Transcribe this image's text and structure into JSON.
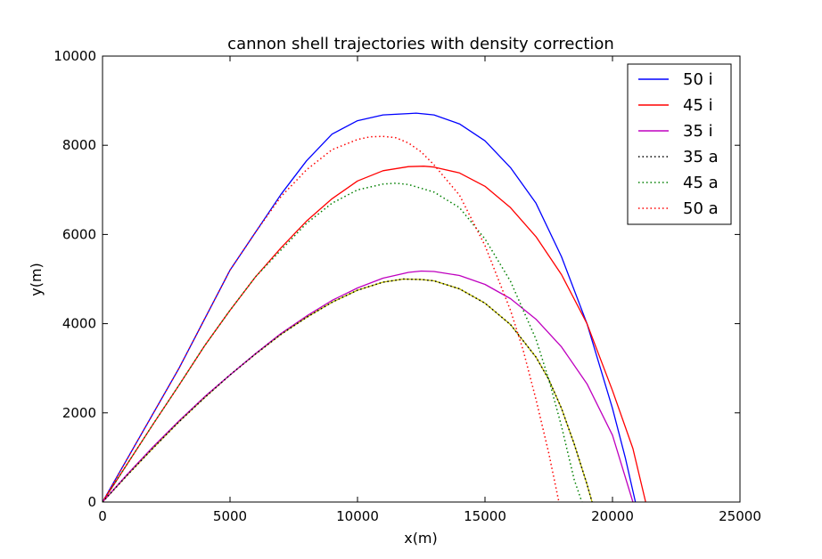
{
  "chart_data": {
    "type": "line",
    "title": "cannon shell trajectories with density correction",
    "xlabel": "x(m)",
    "ylabel": "y(m)",
    "xlim": [
      0,
      25000
    ],
    "ylim": [
      0,
      10000
    ],
    "xticks": [
      0,
      5000,
      10000,
      15000,
      20000,
      25000
    ],
    "yticks": [
      0,
      2000,
      4000,
      6000,
      8000,
      10000
    ],
    "grid": false,
    "legend_position": "top-right",
    "series": [
      {
        "name": "50 i",
        "color": "#0000ff",
        "dash": "solid",
        "x": [
          0,
          1000,
          2000,
          3000,
          4000,
          5000,
          6000,
          7000,
          8000,
          9000,
          10000,
          11000,
          12000,
          12300,
          13000,
          14000,
          15000,
          16000,
          17000,
          18000,
          19000,
          20000,
          20500,
          20900
        ],
        "y": [
          0,
          1000,
          2000,
          3000,
          4100,
          5200,
          6050,
          6900,
          7650,
          8250,
          8550,
          8680,
          8710,
          8720,
          8680,
          8480,
          8100,
          7500,
          6700,
          5500,
          4000,
          2100,
          1000,
          0
        ]
      },
      {
        "name": "45 i",
        "color": "#ff0000",
        "dash": "solid",
        "x": [
          0,
          1000,
          2000,
          3000,
          4000,
          5000,
          6000,
          7000,
          8000,
          9000,
          10000,
          11000,
          12000,
          12600,
          13000,
          14000,
          15000,
          16000,
          17000,
          18000,
          19000,
          20000,
          20800,
          21300
        ],
        "y": [
          0,
          880,
          1760,
          2620,
          3500,
          4300,
          5050,
          5700,
          6300,
          6800,
          7200,
          7430,
          7520,
          7530,
          7510,
          7380,
          7080,
          6600,
          5950,
          5100,
          4000,
          2500,
          1200,
          0
        ]
      },
      {
        "name": "35 i",
        "color": "#bf00bf",
        "dash": "solid",
        "x": [
          0,
          1000,
          2000,
          3000,
          4000,
          5000,
          6000,
          7000,
          8000,
          9000,
          10000,
          11000,
          12000,
          12500,
          13000,
          14000,
          15000,
          16000,
          17000,
          18000,
          19000,
          20000,
          20800
        ],
        "y": [
          0,
          640,
          1250,
          1820,
          2360,
          2850,
          3330,
          3780,
          4170,
          4520,
          4800,
          5020,
          5150,
          5180,
          5170,
          5080,
          4880,
          4560,
          4100,
          3480,
          2650,
          1500,
          0
        ]
      },
      {
        "name": "35 a",
        "color": "#000000",
        "dash": "dotted",
        "x": [
          0,
          1000,
          2000,
          3000,
          4000,
          5000,
          6000,
          7000,
          8000,
          9000,
          10000,
          11000,
          11800,
          12500,
          13000,
          14000,
          15000,
          16000,
          17000,
          17500,
          18000,
          18500,
          19000,
          19200
        ],
        "y": [
          0,
          620,
          1220,
          1800,
          2340,
          2850,
          3320,
          3760,
          4140,
          4480,
          4750,
          4930,
          5000,
          4990,
          4960,
          4780,
          4460,
          3980,
          3250,
          2750,
          2100,
          1300,
          400,
          0
        ]
      },
      {
        "name": "45 a",
        "color": "#007f00",
        "dash": "dotted",
        "x": [
          0,
          1000,
          2000,
          3000,
          4000,
          5000,
          6000,
          7000,
          8000,
          9000,
          10000,
          11000,
          11500,
          12000,
          13000,
          14000,
          15000,
          16000,
          17000,
          17500,
          18000,
          18500,
          18800
        ],
        "y": [
          0,
          880,
          1760,
          2620,
          3500,
          4300,
          5050,
          5650,
          6250,
          6700,
          7000,
          7130,
          7150,
          7120,
          6950,
          6600,
          5900,
          4950,
          3650,
          2750,
          1700,
          500,
          0
        ]
      },
      {
        "name": "50 a",
        "color": "#ff0000",
        "dash": "dotted",
        "x": [
          0,
          1000,
          2000,
          3000,
          4000,
          5000,
          6000,
          7000,
          8000,
          9000,
          10000,
          10500,
          11000,
          11500,
          12000,
          12500,
          13000,
          14000,
          15000,
          16000,
          16500,
          17000,
          17500,
          17900
        ],
        "y": [
          0,
          1000,
          2000,
          3000,
          4100,
          5200,
          6050,
          6850,
          7450,
          7900,
          8130,
          8190,
          8200,
          8170,
          8050,
          7850,
          7560,
          6880,
          5750,
          4300,
          3400,
          2300,
          1100,
          0
        ]
      },
      {
        "name": "",
        "color": "#bfbf00",
        "dash": "solid",
        "x": [
          0,
          1000,
          2000,
          3000,
          4000,
          5000,
          6000,
          7000,
          8000,
          9000,
          10000,
          11000,
          11800,
          12500,
          13000,
          14000,
          15000,
          16000,
          17000,
          17500,
          18000,
          18500,
          19000,
          19200
        ],
        "y": [
          0,
          620,
          1220,
          1800,
          2340,
          2850,
          3320,
          3760,
          4140,
          4480,
          4750,
          4930,
          5000,
          4990,
          4960,
          4780,
          4460,
          3980,
          3250,
          2750,
          2100,
          1300,
          400,
          0
        ]
      }
    ],
    "legend_order": [
      0,
      1,
      2,
      3,
      4,
      5
    ]
  }
}
